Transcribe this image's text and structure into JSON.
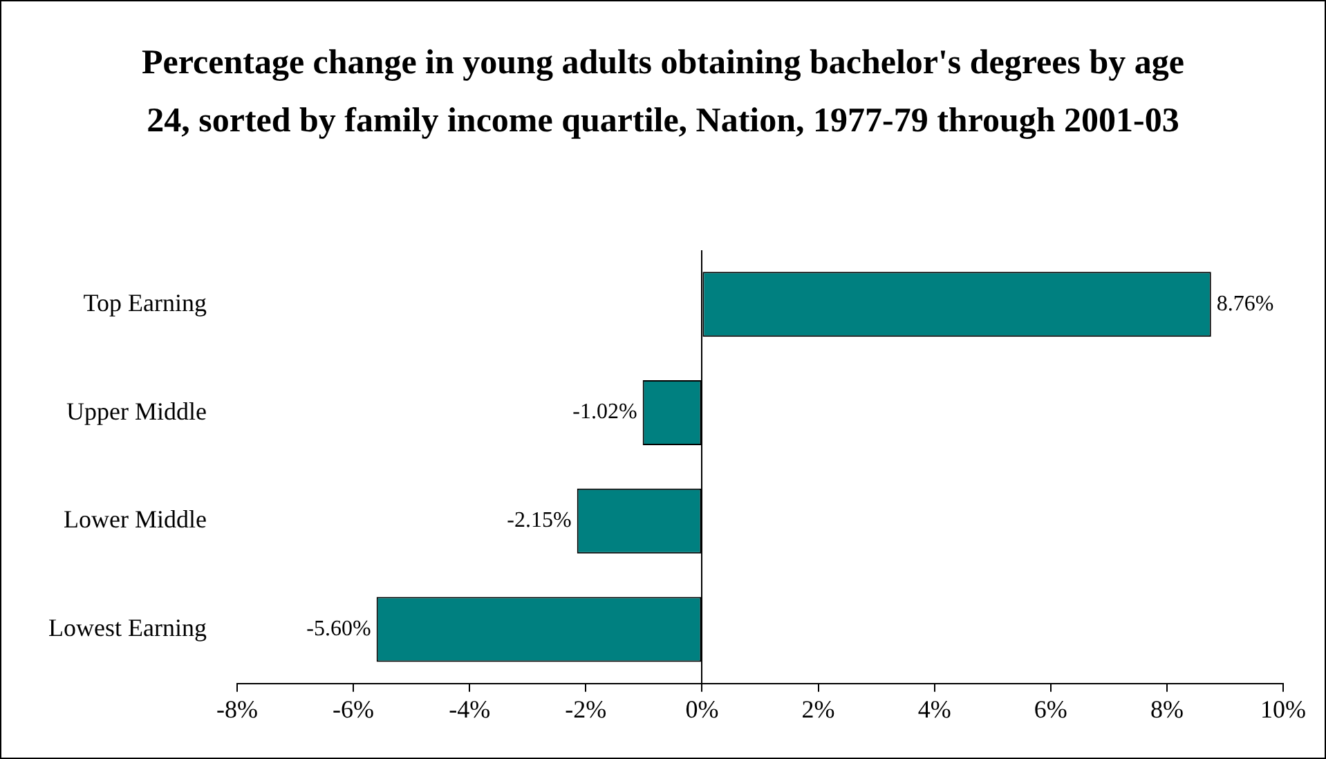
{
  "chart_data": {
    "type": "bar",
    "orientation": "horizontal",
    "title": "Percentage change in young adults obtaining bachelor's degrees by age 24, sorted by family income quartile, Nation, 1977-79 through 2001-03",
    "categories": [
      "Top Earning",
      "Upper Middle",
      "Lower Middle",
      "Lowest Earning"
    ],
    "values": [
      8.76,
      -1.02,
      -2.15,
      -5.6
    ],
    "value_labels": [
      "8.76%",
      "-1.02%",
      "-2.15%",
      "-5.60%"
    ],
    "color": "#008080",
    "xlim": [
      -8,
      10
    ],
    "xticks": [
      {
        "value": -8,
        "label": "-8%"
      },
      {
        "value": -6,
        "label": "-6%"
      },
      {
        "value": -4,
        "label": "-4%"
      },
      {
        "value": -2,
        "label": "-2%"
      },
      {
        "value": 0,
        "label": "0%"
      },
      {
        "value": 2,
        "label": "2%"
      },
      {
        "value": 4,
        "label": "4%"
      },
      {
        "value": 6,
        "label": "6%"
      },
      {
        "value": 8,
        "label": "8%"
      },
      {
        "value": 10,
        "label": "10%"
      }
    ]
  }
}
